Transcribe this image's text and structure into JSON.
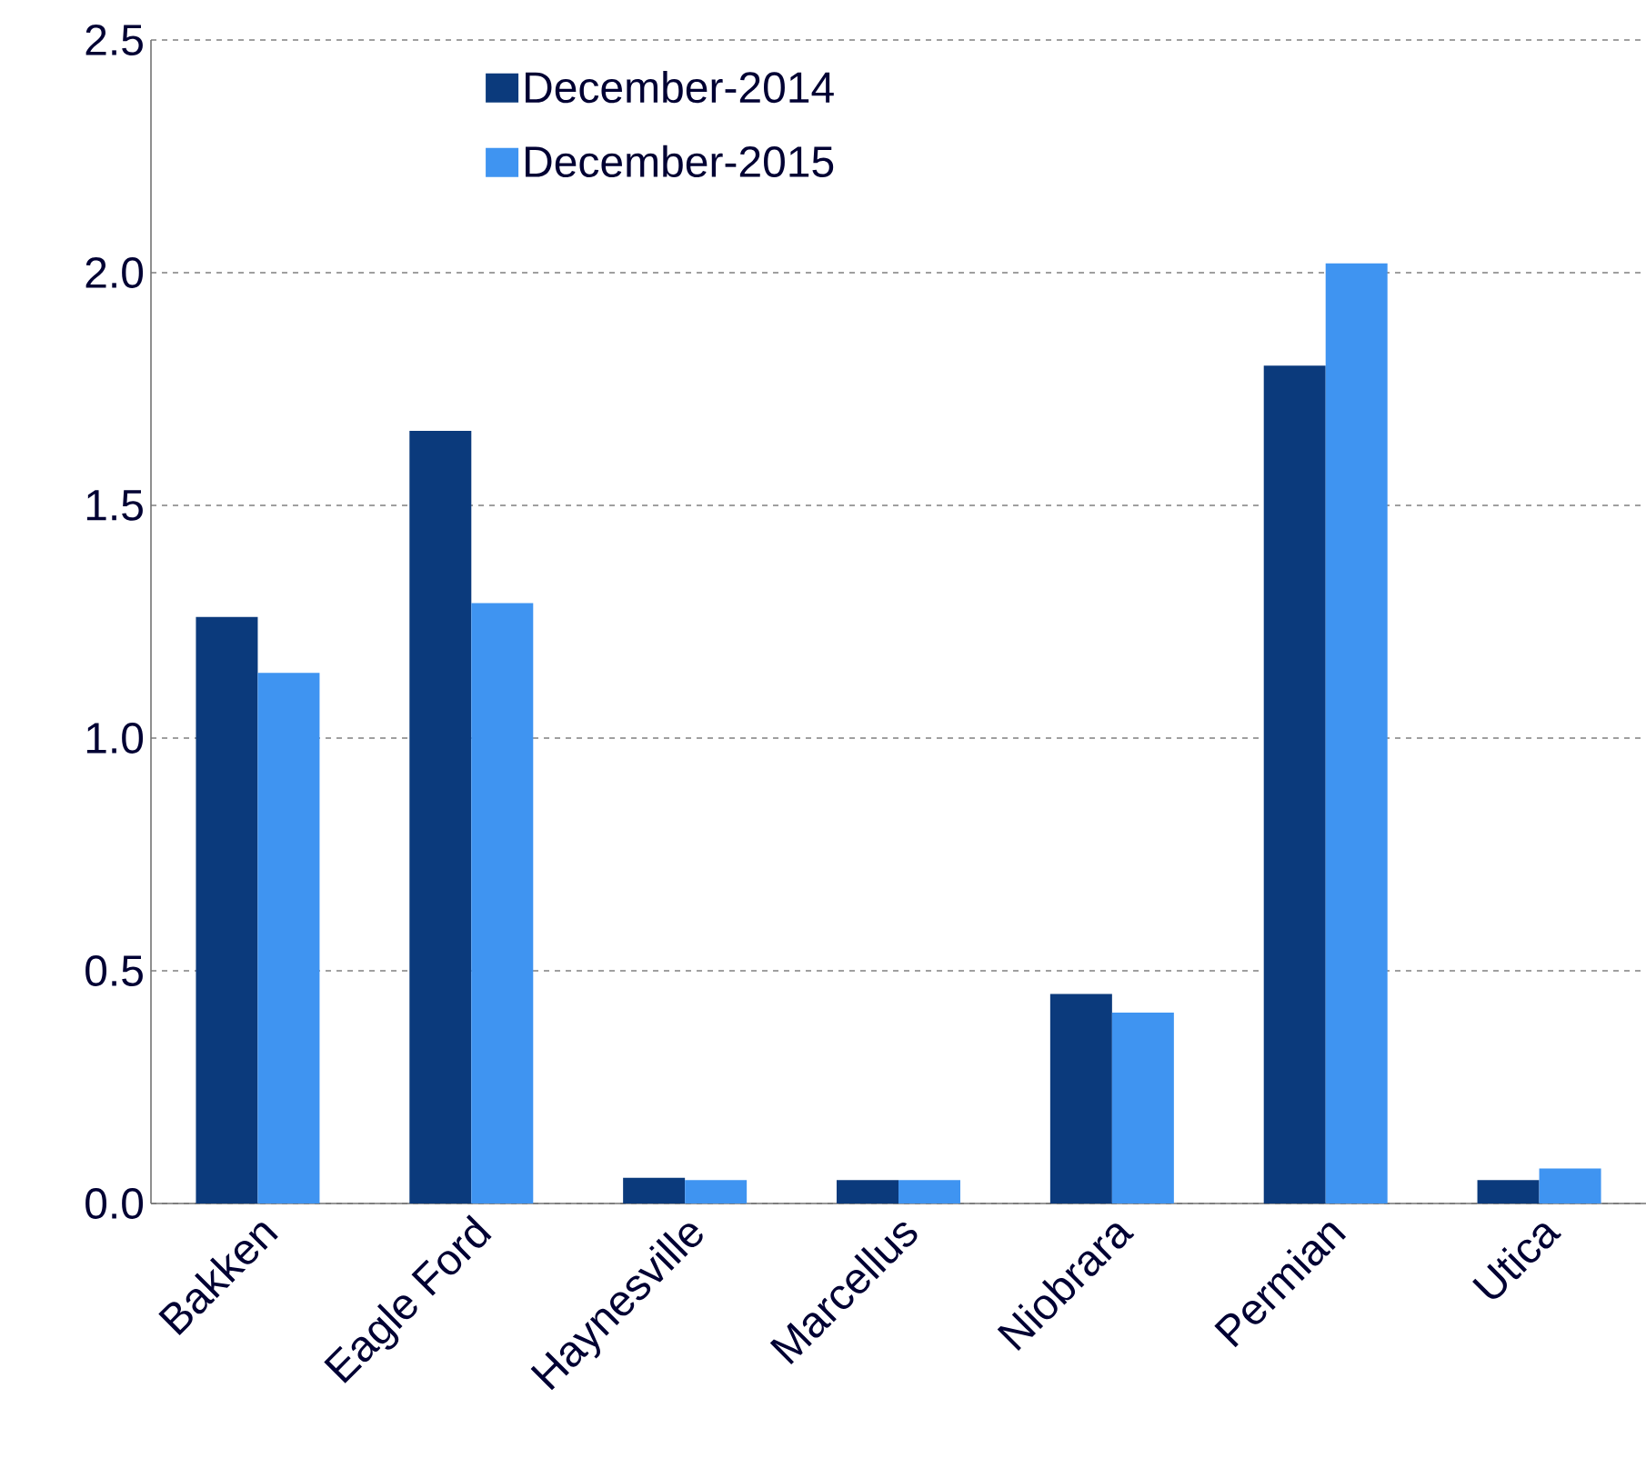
{
  "chart_data": {
    "type": "bar",
    "categories": [
      "Bakken",
      "Eagle Ford",
      "Haynesville",
      "Marcellus",
      "Niobrara",
      "Permian",
      "Utica"
    ],
    "series": [
      {
        "name": "December-2014",
        "color": "#0b3a7c",
        "values": [
          1.26,
          1.66,
          0.055,
          0.05,
          0.45,
          1.8,
          0.05
        ]
      },
      {
        "name": "December-2015",
        "color": "#3f94f1",
        "values": [
          1.14,
          1.29,
          0.05,
          0.05,
          0.41,
          2.02,
          0.075
        ]
      }
    ],
    "ylim": [
      0,
      2.5
    ],
    "yticks": [
      {
        "value": 0,
        "label": "0.0"
      },
      {
        "value": 0.5,
        "label": "0.5"
      },
      {
        "value": 1,
        "label": "1.0"
      },
      {
        "value": 1.5,
        "label": "1.5"
      },
      {
        "value": 2,
        "label": "2.0"
      },
      {
        "value": 2.5,
        "label": "2.5"
      }
    ],
    "grid": "y",
    "legend": "top left"
  }
}
